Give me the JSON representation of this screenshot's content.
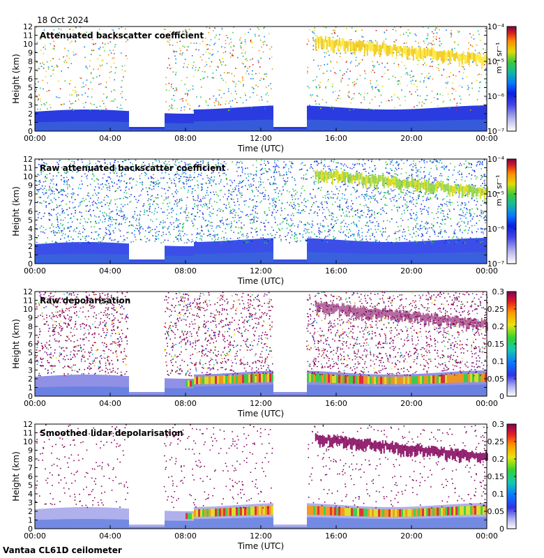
{
  "date_label": "18 Oct 2024",
  "footer_label": "Vantaa CL61D ceilometer",
  "chart_data": [
    {
      "type": "heatmap",
      "title": "Attenuated backscatter coefficient",
      "xlabel": "Time (UTC)",
      "ylabel": "Height (km)",
      "x_ticks": [
        "00:00",
        "04:00",
        "08:00",
        "12:00",
        "16:00",
        "20:00",
        "00:00"
      ],
      "y_ticks": [
        "0",
        "1",
        "2",
        "3",
        "4",
        "5",
        "6",
        "7",
        "8",
        "9",
        "10",
        "11",
        "12"
      ],
      "ylim": [
        0,
        12
      ],
      "colorbar": {
        "scale": "log",
        "ticks": [
          "10⁻⁷",
          "10⁻⁶",
          "10⁻⁵",
          "10⁻⁴"
        ],
        "unit": "m⁻¹ sr⁻¹"
      }
    },
    {
      "type": "heatmap",
      "title": "Raw attenuated backscatter coefficient",
      "xlabel": "Time (UTC)",
      "ylabel": "Height (km)",
      "x_ticks": [
        "00:00",
        "04:00",
        "08:00",
        "12:00",
        "16:00",
        "20:00",
        "00:00"
      ],
      "y_ticks": [
        "0",
        "1",
        "2",
        "3",
        "4",
        "5",
        "6",
        "7",
        "8",
        "9",
        "10",
        "11",
        "12"
      ],
      "ylim": [
        0,
        12
      ],
      "colorbar": {
        "scale": "log",
        "ticks": [
          "10⁻⁷",
          "10⁻⁶",
          "10⁻⁵",
          "10⁻⁴"
        ],
        "unit": "m⁻¹ sr⁻¹"
      }
    },
    {
      "type": "heatmap",
      "title": "Raw depolarisation",
      "xlabel": "Time (UTC)",
      "ylabel": "Height (km)",
      "x_ticks": [
        "00:00",
        "04:00",
        "08:00",
        "12:00",
        "16:00",
        "20:00",
        "00:00"
      ],
      "y_ticks": [
        "0",
        "1",
        "2",
        "3",
        "4",
        "5",
        "6",
        "7",
        "8",
        "9",
        "10",
        "11",
        "12"
      ],
      "ylim": [
        0,
        12
      ],
      "colorbar": {
        "scale": "linear",
        "ticks": [
          "0",
          "0.05",
          "0.1",
          "0.15",
          "0.2",
          "0.25",
          "0.3"
        ],
        "unit": ""
      }
    },
    {
      "type": "heatmap",
      "title": "Smoothed lidar depolarisation",
      "xlabel": "Time (UTC)",
      "ylabel": "Height (km)",
      "x_ticks": [
        "00:00",
        "04:00",
        "08:00",
        "12:00",
        "16:00",
        "20:00",
        "00:00"
      ],
      "y_ticks": [
        "0",
        "1",
        "2",
        "3",
        "4",
        "5",
        "6",
        "7",
        "8",
        "9",
        "10",
        "11",
        "12"
      ],
      "ylim": [
        0,
        12
      ],
      "colorbar": {
        "scale": "linear",
        "ticks": [
          "0",
          "0.05",
          "0.1",
          "0.15",
          "0.2",
          "0.25",
          "0.3"
        ],
        "unit": ""
      }
    }
  ]
}
